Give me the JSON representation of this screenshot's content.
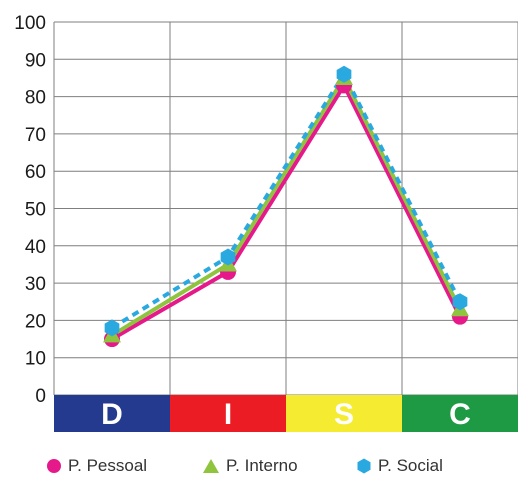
{
  "chart_data": {
    "type": "line",
    "categories": [
      "D",
      "I",
      "S",
      "C"
    ],
    "category_colors": [
      "#243a8e",
      "#ec1c24",
      "#f5ec32",
      "#1e9a44"
    ],
    "series": [
      {
        "name": "P. Pessoal",
        "values": [
          15,
          33,
          83,
          21
        ],
        "color": "#e6198a",
        "marker": "circle",
        "dash": "solid"
      },
      {
        "name": "P. Interno",
        "values": [
          16,
          35,
          85,
          23
        ],
        "color": "#8fc43e",
        "marker": "triangle",
        "dash": "solid"
      },
      {
        "name": "P. Social",
        "values": [
          18,
          37,
          86,
          25
        ],
        "color": "#2aa8e0",
        "marker": "hexagon",
        "dash": "dashed"
      }
    ],
    "yticks": [
      "0",
      "10",
      "20",
      "30",
      "40",
      "50",
      "60",
      "70",
      "80",
      "90",
      "100"
    ],
    "ylim": [
      0,
      100
    ],
    "grid": true,
    "legend_position": "bottom"
  }
}
